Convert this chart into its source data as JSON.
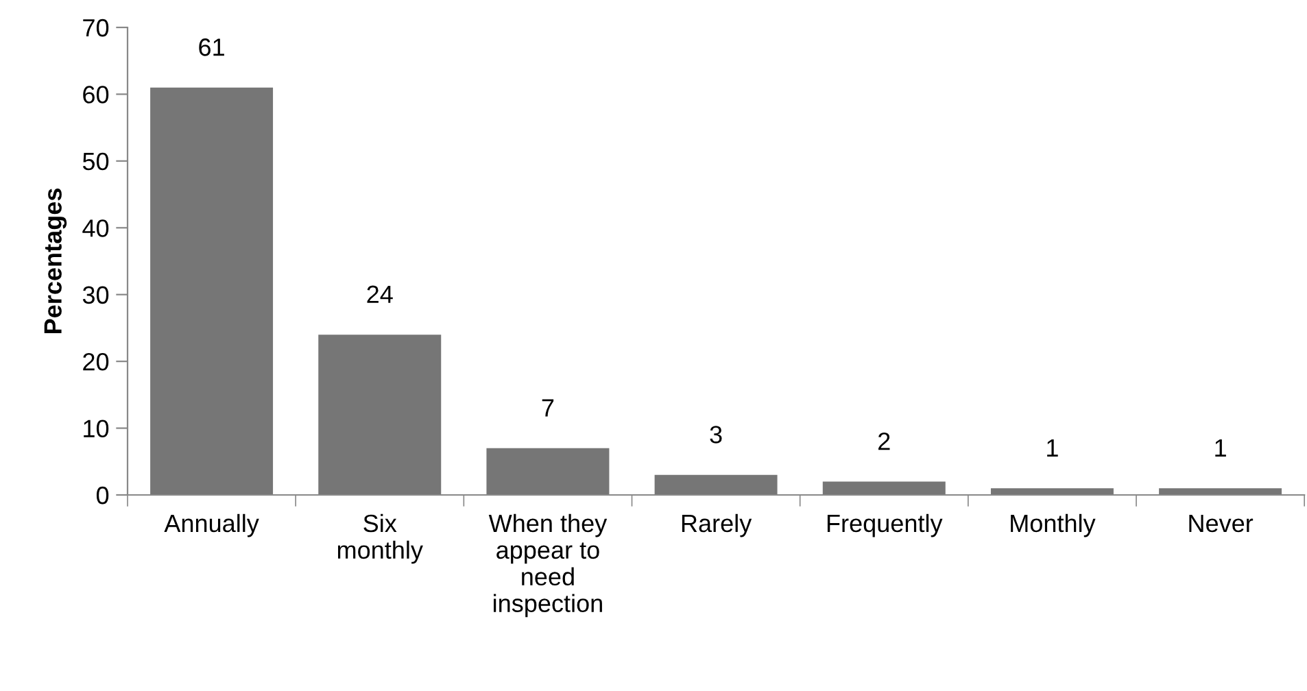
{
  "chart_data": {
    "type": "bar",
    "ylabel": "Percentages",
    "categories": [
      "Annually",
      "Six\nmonthly",
      "When they\nappear to\nneed\ninspection",
      "Rarely",
      "Frequently",
      "Monthly",
      "Never"
    ],
    "values": [
      61,
      24,
      7,
      3,
      2,
      1,
      1
    ],
    "color": "#767676",
    "ylim": [
      0,
      70
    ],
    "yticks": [
      0,
      10,
      20,
      30,
      40,
      50,
      60,
      70
    ],
    "data_labels": true,
    "grid": false,
    "legend": false
  }
}
